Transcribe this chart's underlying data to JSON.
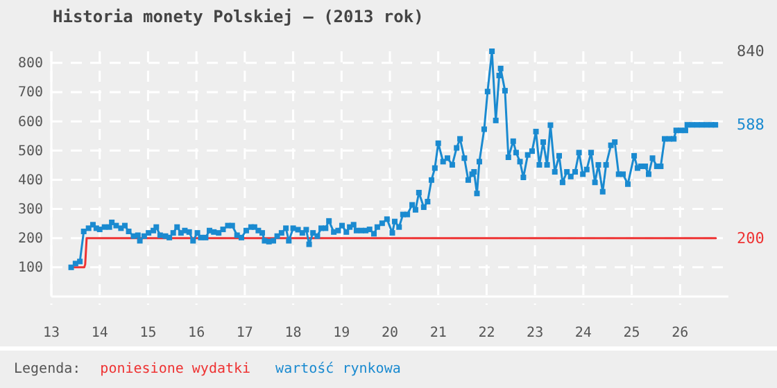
{
  "chart_data": {
    "type": "line",
    "title": "Historia monety Polskiej – (2013 rok)",
    "legend_title": "Legenda:",
    "legend": "bottom",
    "grid": true,
    "line_style": "solid",
    "xlim": [
      13,
      27
    ],
    "xticks": [
      13,
      14,
      15,
      16,
      17,
      18,
      19,
      20,
      21,
      22,
      23,
      24,
      25,
      26
    ],
    "ylim": [
      0,
      840
    ],
    "yticks": [
      100,
      200,
      300,
      400,
      500,
      600,
      700,
      800
    ],
    "y2lim": [
      0,
      840
    ],
    "y2ticks": [
      200,
      588,
      840
    ],
    "series": [
      {
        "name": "poniesione wydatki",
        "color": "#ee3333",
        "marker": "none",
        "x": [
          13.45,
          13.68,
          13.7,
          13.73,
          26.74
        ],
        "values": [
          100,
          100,
          110,
          200,
          200
        ]
      },
      {
        "name": "wartość rynkowa",
        "color": "#1a8ad0",
        "marker": "square",
        "x": [
          13.41,
          13.5,
          13.59,
          13.67,
          13.77,
          13.86,
          13.93,
          14.0,
          14.1,
          14.2,
          14.25,
          14.34,
          14.44,
          14.52,
          14.6,
          14.7,
          14.79,
          14.83,
          14.92,
          15.01,
          15.11,
          15.17,
          15.25,
          15.36,
          15.44,
          15.52,
          15.6,
          15.68,
          15.76,
          15.85,
          15.93,
          16.02,
          16.09,
          16.19,
          16.27,
          16.36,
          16.46,
          16.55,
          16.65,
          16.74,
          16.84,
          16.93,
          17.03,
          17.13,
          17.2,
          17.28,
          17.36,
          17.41,
          17.5,
          17.59,
          17.67,
          17.76,
          17.85,
          17.91,
          18.0,
          18.1,
          18.19,
          18.27,
          18.33,
          18.41,
          18.5,
          18.58,
          18.67,
          18.74,
          18.84,
          18.93,
          19.01,
          19.1,
          19.17,
          19.25,
          19.31,
          19.41,
          19.5,
          19.58,
          19.67,
          19.74,
          19.84,
          19.94,
          20.05,
          20.1,
          20.19,
          20.27,
          20.36,
          20.46,
          20.53,
          20.6,
          20.7,
          20.78,
          20.86,
          20.93,
          21.0,
          21.1,
          21.19,
          21.29,
          21.38,
          21.45,
          21.54,
          21.62,
          21.7,
          21.74,
          21.8,
          21.85,
          21.95,
          22.02,
          22.11,
          22.19,
          22.26,
          22.29,
          22.38,
          22.45,
          22.55,
          22.61,
          22.69,
          22.76,
          22.85,
          22.94,
          23.02,
          23.09,
          23.17,
          23.25,
          23.32,
          23.41,
          23.5,
          23.57,
          23.66,
          23.74,
          23.83,
          23.91,
          23.99,
          24.07,
          24.16,
          24.24,
          24.31,
          24.4,
          24.47,
          24.57,
          24.65,
          24.73,
          24.82,
          24.92,
          25.05,
          25.12,
          25.19,
          25.28,
          25.35,
          25.43,
          25.52,
          25.6,
          25.68,
          25.78,
          25.87,
          25.92,
          26.01,
          26.11,
          26.15,
          26.25,
          26.35,
          26.45,
          26.55,
          26.65,
          26.73
        ],
        "values": [
          100,
          113,
          120,
          223,
          234,
          246,
          234,
          230,
          238,
          238,
          254,
          243,
          234,
          243,
          223,
          207,
          210,
          191,
          207,
          218,
          226,
          238,
          210,
          207,
          202,
          218,
          238,
          218,
          226,
          221,
          191,
          218,
          202,
          202,
          226,
          221,
          218,
          230,
          243,
          243,
          210,
          202,
          226,
          238,
          238,
          226,
          218,
          191,
          188,
          191,
          207,
          218,
          234,
          191,
          234,
          229,
          218,
          229,
          179,
          218,
          207,
          234,
          234,
          259,
          221,
          226,
          243,
          221,
          238,
          246,
          226,
          226,
          226,
          230,
          215,
          238,
          251,
          265,
          218,
          257,
          238,
          281,
          281,
          314,
          297,
          356,
          306,
          325,
          399,
          440,
          525,
          462,
          474,
          451,
          509,
          540,
          474,
          399,
          419,
          427,
          353,
          462,
          573,
          702,
          840,
          603,
          757,
          781,
          705,
          477,
          532,
          493,
          462,
          408,
          485,
          498,
          565,
          451,
          529,
          451,
          587,
          427,
          482,
          391,
          427,
          411,
          427,
          493,
          419,
          435,
          493,
          391,
          451,
          359,
          451,
          518,
          529,
          419,
          419,
          385,
          482,
          440,
          446,
          446,
          419,
          474,
          446,
          446,
          540,
          540,
          540,
          569,
          569,
          569,
          588,
          588,
          588,
          588,
          588,
          588,
          588
        ]
      }
    ]
  }
}
